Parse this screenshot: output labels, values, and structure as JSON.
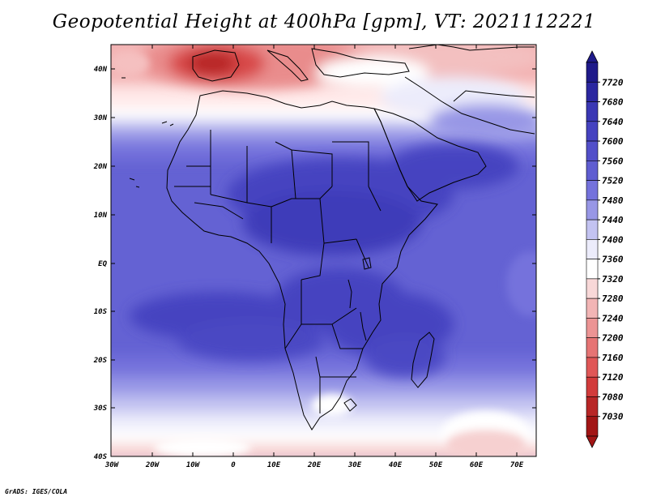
{
  "title": "Geopotential Height at 400hPa [gpm], VT: 2021112221",
  "footer": "GrADS: IGES/COLA",
  "map": {
    "lat_labels": [
      "40N",
      "30N",
      "20N",
      "10N",
      "EQ",
      "10S",
      "20S",
      "30S",
      "40S"
    ],
    "lon_labels": [
      "30W",
      "20W",
      "10W",
      "0",
      "10E",
      "20E",
      "30E",
      "40E",
      "50E",
      "60E",
      "70E"
    ]
  },
  "colorbar": {
    "levels": [
      "7720",
      "7680",
      "7640",
      "7600",
      "7560",
      "7520",
      "7480",
      "7440",
      "7400",
      "7360",
      "7320",
      "7280",
      "7240",
      "7200",
      "7160",
      "7120",
      "7080",
      "7030"
    ],
    "colors": [
      "#1f1a8a",
      "#2b27a0",
      "#3a37b4",
      "#4542c0",
      "#524fc9",
      "#5f5dd1",
      "#7472dc",
      "#9897e6",
      "#c3c3f1",
      "#ececfb",
      "#ffffff",
      "#f8d8d8",
      "#f2b5b5",
      "#ec9494",
      "#e67474",
      "#e05757",
      "#d23b3b",
      "#b82626",
      "#a21515"
    ],
    "accent_top": "#1f1a8a",
    "accent_bottom": "#a21515"
  }
}
